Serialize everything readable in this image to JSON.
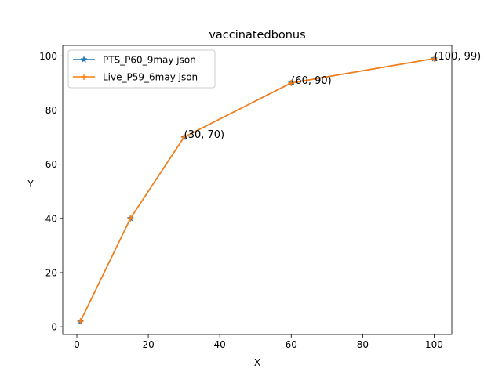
{
  "chart_data": {
    "type": "line",
    "title": "vaccinatedbonus",
    "xlabel": "X",
    "ylabel": "Y",
    "xlim": [
      -3.95,
      104.95
    ],
    "ylim": [
      -2.85,
      103.85
    ],
    "xticks": [
      0,
      20,
      40,
      60,
      80,
      100
    ],
    "yticks": [
      0,
      20,
      40,
      60,
      80,
      100
    ],
    "grid": false,
    "legend_position": "upper-left",
    "series": [
      {
        "name": "PTS_P60_9may json",
        "color": "#1f77b4",
        "marker": "star",
        "x": [
          1,
          15,
          30,
          60,
          100
        ],
        "y": [
          2,
          40,
          70,
          90,
          99
        ]
      },
      {
        "name": "Live_P59_6may json",
        "color": "#ff7f0e",
        "marker": "plus",
        "x": [
          1,
          15,
          30,
          60,
          100
        ],
        "y": [
          2,
          40,
          70,
          90,
          99
        ]
      }
    ],
    "annotations": [
      {
        "text": "(30, 70)",
        "x": 30,
        "y": 70
      },
      {
        "text": "(60, 90)",
        "x": 60,
        "y": 90
      },
      {
        "text": "(100, 99)",
        "x": 100,
        "y": 99
      }
    ]
  }
}
